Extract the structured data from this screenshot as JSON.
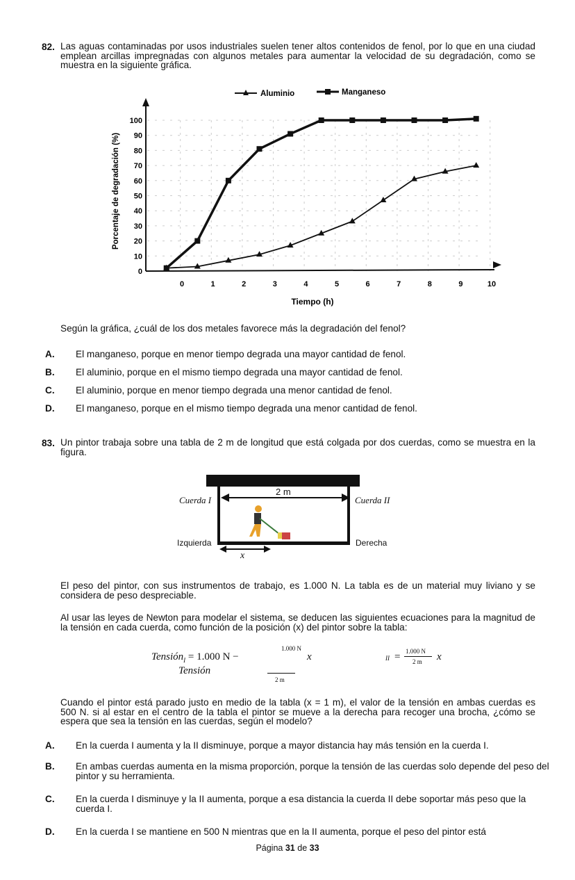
{
  "q82": {
    "number": "82.",
    "text": "Las aguas contaminadas por usos industriales suelen tener altos contenidos de fenol, por lo que en una ciudad emplean arcillas impregnadas con algunos metales para aumentar la velocidad de su degradación, como se muestra en la siguiente gráfica.",
    "question": "Según la gráfica, ¿cuál de los dos metales favorece más la degradación del fenol?",
    "options": [
      {
        "letter": "A.",
        "text": "El manganeso, porque en menor tiempo degrada una mayor cantidad de fenol."
      },
      {
        "letter": "B.",
        "text": "El aluminio, porque en el mismo tiempo degrada una mayor cantidad de fenol."
      },
      {
        "letter": "C.",
        "text": "El aluminio, porque en menor tiempo degrada una menor cantidad de fenol."
      },
      {
        "letter": "D.",
        "text": "El manganeso, porque en el mismo tiempo degrada una menor cantidad de fenol."
      }
    ]
  },
  "chart_data": {
    "type": "line",
    "xlabel": "Tiempo (h)",
    "ylabel": "Porcentaje de degradación  (%)",
    "x_ticks": [
      "0",
      "1",
      "2",
      "3",
      "4",
      "5",
      "6",
      "7",
      "8",
      "9",
      "10"
    ],
    "y_ticks": [
      "0",
      "10",
      "20",
      "30",
      "40",
      "50",
      "60",
      "70",
      "80",
      "90",
      "100"
    ],
    "xlim": [
      -1.2,
      10.3
    ],
    "ylim": [
      0,
      100
    ],
    "grid": true,
    "legend": "top",
    "x": [
      -0.5,
      0.5,
      1.5,
      2.5,
      3.5,
      4.5,
      5.5,
      6.5,
      7.5,
      8.5,
      9.5
    ],
    "series": [
      {
        "name": "Aluminio",
        "marker": "triangle",
        "values": [
          2,
          3,
          7,
          11,
          17,
          25,
          33,
          47,
          61,
          66,
          70
        ]
      },
      {
        "name": "Manganeso",
        "marker": "square",
        "values": [
          2,
          20,
          60,
          81,
          91,
          100,
          100,
          100,
          100,
          100,
          101
        ]
      }
    ]
  },
  "q83": {
    "number": "83.",
    "text": "Un pintor trabaja sobre una tabla de 2 m de longitud que está colgada por dos cuerdas, como se muestra en la figura.",
    "figure": {
      "length": "2 m",
      "rope_left": "Cuerda I",
      "rope_right": "Cuerda II",
      "left": "Izquierda",
      "right": "Derecha",
      "x": "x"
    },
    "p1": "El peso del pintor, con sus instrumentos de trabajo, es 1.000 N. La tabla es de un material muy liviano y se considera de peso despreciable.",
    "p2": "Al usar las leyes de Newton para modelar el sistema, se deducen las siguientes ecuaciones para la magnitud de la tensión en cada cuerda, como función de la posición (x) del pintor sobre la tabla:",
    "eq1": {
      "lhs": "Tensión",
      "sub": "I",
      "mid": "= 1.000 N −",
      "num": "1.000 N",
      "var": "x",
      "den": "2 m",
      "second_line": "Tensión"
    },
    "eq2": {
      "sub": "II",
      "eq": "=",
      "num": "1.000 N",
      "den": "2 m",
      "var": "x"
    },
    "p3": "Cuando el pintor está parado justo en medio de la tabla (x = 1 m), el valor de la tensión en ambas cuerdas es 500 N. si al estar en el centro de la tabla el pintor se mueve a la derecha para recoger una brocha, ¿cómo se espera que sea la tensión en las cuerdas, según el modelo?",
    "options": [
      {
        "letter": "A.",
        "text": "En la cuerda I aumenta y la II disminuye, porque a mayor distancia hay más tensión en la cuerda I."
      },
      {
        "letter": "B.",
        "text": "En ambas cuerdas aumenta en la misma proporción, porque la tensión de  las cuerdas  solo depende del peso del pintor y su herramienta."
      },
      {
        "letter": "C.",
        "text": "En la cuerda I disminuye y la II aumenta, porque a esa distancia la cuerda II debe soportar más peso que la cuerda I."
      },
      {
        "letter": "D.",
        "text": "En la cuerda I se mantiene en 500 N mientras que en la II aumenta, porque el peso del pintor está"
      }
    ]
  },
  "footer": {
    "prefix": "Página",
    "page": "31",
    "mid": "de",
    "total": "33"
  }
}
